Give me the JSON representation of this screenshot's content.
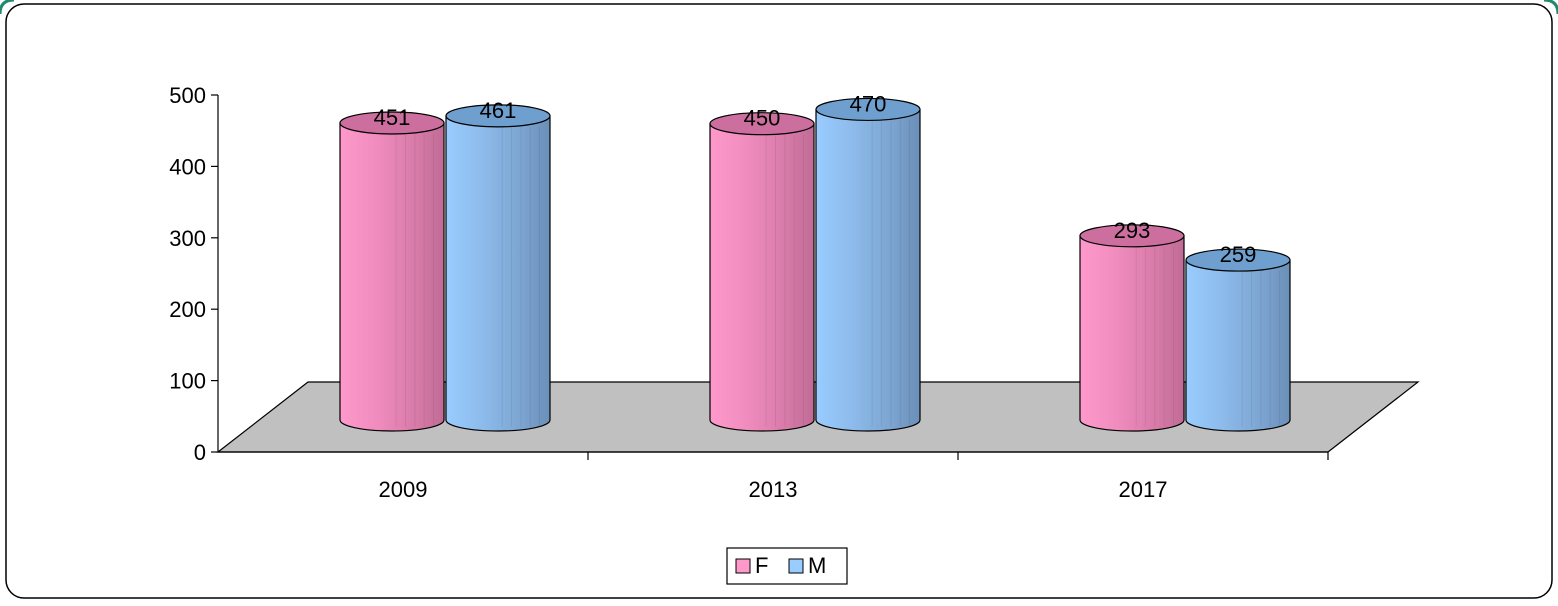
{
  "chart_data": {
    "type": "bar",
    "title": "",
    "xlabel": "",
    "ylabel": "",
    "categories": [
      "2009",
      "2013",
      "2017"
    ],
    "ylim": [
      0,
      500
    ],
    "yticks": [
      0,
      100,
      200,
      300,
      400,
      500
    ],
    "grid": false,
    "legend_position": "bottom",
    "series": [
      {
        "name": "F",
        "values": [
          451,
          450,
          293
        ],
        "color": "#ff99cc"
      },
      {
        "name": "M",
        "values": [
          461,
          470,
          259
        ],
        "color": "#99ccff"
      }
    ],
    "data_labels": true,
    "style": "3d-cylinder",
    "floor_color": "#c0c0c0"
  }
}
